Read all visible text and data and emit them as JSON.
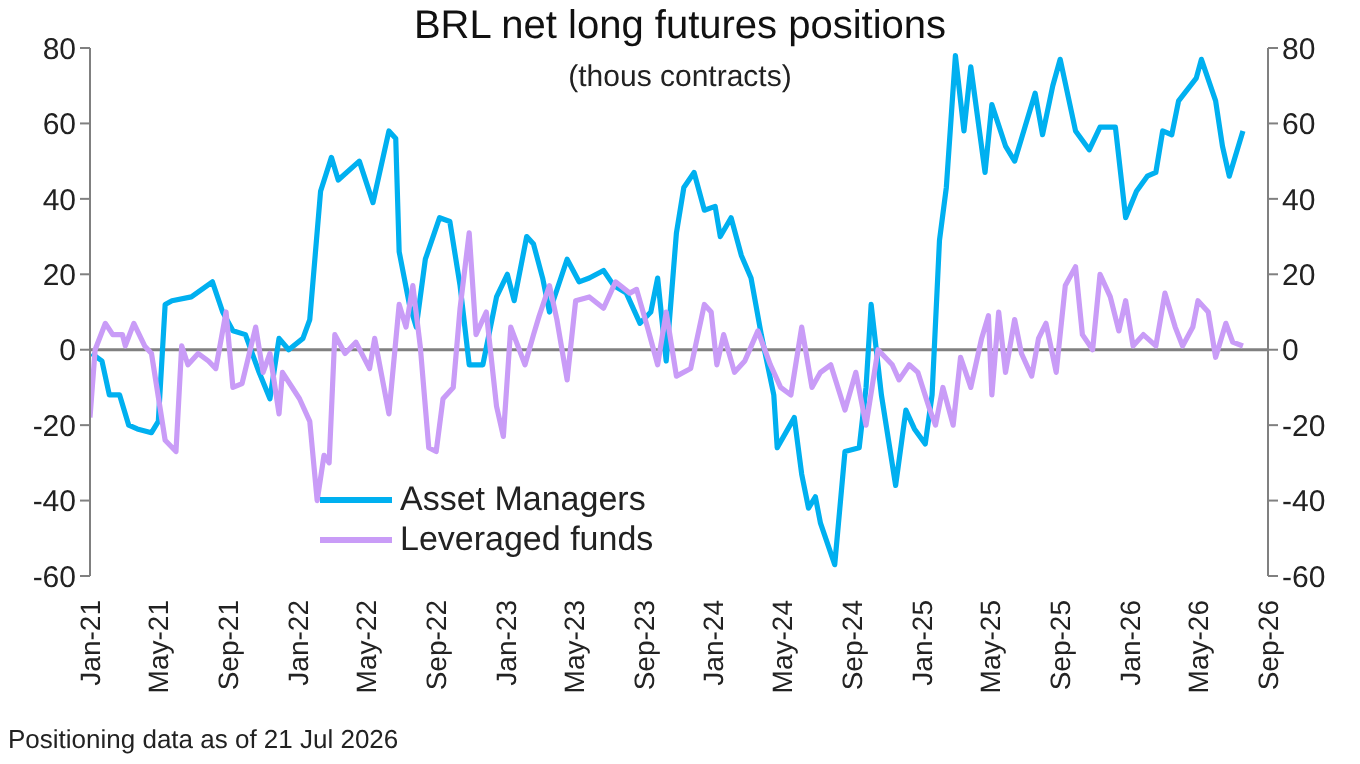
{
  "chart_data": {
    "type": "line",
    "title": "BRL net long futures positions",
    "subtitle": "(thous contracts)",
    "annotations": [
      "Positioning data as of 21 Jul 2026"
    ],
    "xlim": [
      "2021-01-01",
      "2026-09-01"
    ],
    "xticks": [
      {
        "value": "2021-01-01",
        "label": "Jan-21"
      },
      {
        "value": "2021-05-01",
        "label": "May-21"
      },
      {
        "value": "2021-09-01",
        "label": "Sep-21"
      },
      {
        "value": "2022-01-01",
        "label": "Jan-22"
      },
      {
        "value": "2022-05-01",
        "label": "May-22"
      },
      {
        "value": "2022-09-01",
        "label": "Sep-22"
      },
      {
        "value": "2023-01-01",
        "label": "Jan-23"
      },
      {
        "value": "2023-05-01",
        "label": "May-23"
      },
      {
        "value": "2023-09-01",
        "label": "Sep-23"
      },
      {
        "value": "2024-01-01",
        "label": "Jan-24"
      },
      {
        "value": "2024-05-01",
        "label": "May-24"
      },
      {
        "value": "2024-09-01",
        "label": "Sep-24"
      },
      {
        "value": "2025-01-01",
        "label": "Jan-25"
      },
      {
        "value": "2025-05-01",
        "label": "May-25"
      },
      {
        "value": "2025-09-01",
        "label": "Sep-25"
      },
      {
        "value": "2026-01-01",
        "label": "Jan-26"
      },
      {
        "value": "2026-05-01",
        "label": "May-26"
      },
      {
        "value": "2026-09-01",
        "label": "Sep-26"
      }
    ],
    "ylim": [
      -60,
      80
    ],
    "yticks": [
      -60,
      -40,
      -20,
      0,
      20,
      40,
      60,
      80
    ],
    "y2lim": [
      -60,
      80
    ],
    "y2ticks": [
      -60,
      -40,
      -20,
      0,
      20,
      40,
      60,
      80
    ],
    "ref_lines": [
      {
        "axis": "y",
        "value": 0,
        "color": "#808080"
      }
    ],
    "legend": "bottom left",
    "marker": "none",
    "line_style": "solid",
    "series": [
      {
        "name": "Asset Managers",
        "color": "#00b0f0",
        "x": [
          "2021-01-04",
          "2021-01-22",
          "2021-02-04",
          "2021-02-22",
          "2021-03-10",
          "2021-03-25",
          "2021-04-19",
          "2021-05-01",
          "2021-05-13",
          "2021-05-25",
          "2021-06-28",
          "2021-08-04",
          "2021-08-22",
          "2021-09-09",
          "2021-10-01",
          "2021-10-25",
          "2021-11-13",
          "2021-11-29",
          "2021-12-16",
          "2022-01-10",
          "2022-01-22",
          "2022-02-10",
          "2022-03-01",
          "2022-03-13",
          "2022-04-19",
          "2022-05-13",
          "2022-06-10",
          "2022-06-22",
          "2022-06-28",
          "2022-07-16",
          "2022-07-28",
          "2022-08-13",
          "2022-09-07",
          "2022-09-25",
          "2022-10-13",
          "2022-10-29",
          "2022-11-22",
          "2022-12-16",
          "2023-01-04",
          "2023-01-16",
          "2023-02-07",
          "2023-02-19",
          "2023-03-07",
          "2023-03-19",
          "2023-04-19",
          "2023-05-10",
          "2023-05-28",
          "2023-06-22",
          "2023-07-10",
          "2023-08-01",
          "2023-08-25",
          "2023-09-13",
          "2023-09-25",
          "2023-10-10",
          "2023-10-28",
          "2023-11-10",
          "2023-11-28",
          "2023-12-16",
          "2024-01-04",
          "2024-01-13",
          "2024-02-01",
          "2024-02-19",
          "2024-03-07",
          "2024-03-25",
          "2024-04-16",
          "2024-04-22",
          "2024-05-22",
          "2024-06-04",
          "2024-06-16",
          "2024-06-28",
          "2024-07-07",
          "2024-08-01",
          "2024-08-19",
          "2024-09-13",
          "2024-09-25",
          "2024-10-04",
          "2024-10-22",
          "2024-11-16",
          "2024-12-04",
          "2024-12-19",
          "2025-01-07",
          "2025-01-19",
          "2025-02-01",
          "2025-02-13",
          "2025-03-01",
          "2025-03-16",
          "2025-03-28",
          "2025-04-22",
          "2025-05-04",
          "2025-05-28",
          "2025-06-13",
          "2025-07-01",
          "2025-07-19",
          "2025-08-01",
          "2025-08-19",
          "2025-09-01",
          "2025-09-28",
          "2025-10-22",
          "2025-11-10",
          "2025-12-07",
          "2025-12-25",
          "2026-01-13",
          "2026-02-01",
          "2026-02-16",
          "2026-02-28",
          "2026-03-16",
          "2026-03-28",
          "2026-04-28",
          "2026-05-07",
          "2026-06-01",
          "2026-06-13",
          "2026-06-25",
          "2026-07-19"
        ],
        "values": [
          -1,
          -3,
          -12,
          -12,
          -20,
          -21,
          -22,
          -19,
          12,
          13,
          14,
          18,
          10,
          5,
          4,
          -6,
          -13,
          3,
          0,
          3,
          8,
          42,
          51,
          45,
          50,
          39,
          58,
          56,
          26,
          12,
          6,
          24,
          35,
          34,
          17,
          -4,
          -4,
          14,
          20,
          13,
          30,
          28,
          19,
          10,
          24,
          18,
          19,
          21,
          17,
          15,
          7,
          10,
          19,
          -3,
          31,
          43,
          47,
          37,
          38,
          30,
          35,
          25,
          19,
          4,
          -12,
          -26,
          -18,
          -33,
          -42,
          -39,
          -46,
          -57,
          -27,
          -26,
          -10,
          12,
          -12,
          -36,
          -16,
          -21,
          -25,
          -12,
          29,
          43,
          78,
          58,
          75,
          47,
          65,
          54,
          50,
          59,
          68,
          57,
          70,
          77,
          58,
          53,
          59,
          59,
          35,
          42,
          46,
          47,
          58,
          57,
          66,
          72,
          77,
          66,
          54,
          46,
          58
        ]
      },
      {
        "name": "Leveraged funds",
        "color": "#c99cf7",
        "x": [
          "2021-01-01",
          "2021-01-10",
          "2021-01-28",
          "2021-02-10",
          "2021-02-27",
          "2021-03-04",
          "2021-03-19",
          "2021-04-07",
          "2021-04-19",
          "2021-05-13",
          "2021-06-01",
          "2021-06-11",
          "2021-06-22",
          "2021-07-10",
          "2021-07-28",
          "2021-08-10",
          "2021-08-28",
          "2021-09-09",
          "2021-09-25",
          "2021-10-19",
          "2021-11-01",
          "2021-11-13",
          "2021-11-29",
          "2021-12-05",
          "2022-01-04",
          "2022-01-22",
          "2022-02-04",
          "2022-02-16",
          "2022-02-25",
          "2022-03-07",
          "2022-03-25",
          "2022-04-13",
          "2022-05-07",
          "2022-05-16",
          "2022-06-10",
          "2022-06-28",
          "2022-07-10",
          "2022-07-22",
          "2022-08-04",
          "2022-08-19",
          "2022-09-01",
          "2022-09-13",
          "2022-10-01",
          "2022-10-13",
          "2022-10-29",
          "2022-11-10",
          "2022-11-28",
          "2022-12-16",
          "2022-12-28",
          "2023-01-10",
          "2023-02-04",
          "2023-02-19",
          "2023-03-01",
          "2023-03-19",
          "2023-04-01",
          "2023-04-19",
          "2023-05-04",
          "2023-05-28",
          "2023-06-22",
          "2023-07-13",
          "2023-08-07",
          "2023-08-19",
          "2023-09-07",
          "2023-09-25",
          "2023-10-10",
          "2023-10-28",
          "2023-11-22",
          "2023-12-16",
          "2023-12-28",
          "2024-01-07",
          "2024-01-19",
          "2024-02-07",
          "2024-02-25",
          "2024-03-19",
          "2024-04-10",
          "2024-04-28",
          "2024-05-16",
          "2024-06-04",
          "2024-06-22",
          "2024-07-07",
          "2024-07-25",
          "2024-08-19",
          "2024-09-07",
          "2024-09-25",
          "2024-10-16",
          "2024-11-10",
          "2024-11-22",
          "2024-12-10",
          "2024-12-25",
          "2025-01-13",
          "2025-01-25",
          "2025-02-07",
          "2025-02-25",
          "2025-03-10",
          "2025-03-28",
          "2025-04-16",
          "2025-04-28",
          "2025-05-04",
          "2025-05-16",
          "2025-05-28",
          "2025-06-13",
          "2025-06-25",
          "2025-07-13",
          "2025-07-25",
          "2025-08-07",
          "2025-08-25",
          "2025-09-10",
          "2025-09-28",
          "2025-10-10",
          "2025-10-28",
          "2025-11-10",
          "2025-11-28",
          "2025-12-13",
          "2025-12-25",
          "2026-01-07",
          "2026-01-25",
          "2026-02-16",
          "2026-03-04",
          "2026-03-22",
          "2026-04-04",
          "2026-04-22",
          "2026-05-01",
          "2026-05-19",
          "2026-06-01",
          "2026-06-19",
          "2026-07-01",
          "2026-07-19"
        ],
        "values": [
          -18,
          0,
          7,
          4,
          4,
          1,
          7,
          1,
          -1,
          -24,
          -27,
          1,
          -4,
          -1,
          -3,
          -5,
          10,
          -10,
          -9,
          6,
          -6,
          -1,
          -17,
          -6,
          -13,
          -19,
          -40,
          -28,
          -30,
          4,
          -1,
          2,
          -5,
          3,
          -17,
          12,
          6,
          17,
          1,
          -26,
          -27,
          -13,
          -10,
          11,
          31,
          4,
          10,
          -15,
          -23,
          6,
          -4,
          4,
          9,
          17,
          8,
          -8,
          13,
          14,
          11,
          18,
          15,
          16,
          6,
          -4,
          10,
          -7,
          -5,
          12,
          10,
          -4,
          4,
          -6,
          -3,
          5,
          -4,
          -10,
          -12,
          6,
          -10,
          -6,
          -4,
          -16,
          -6,
          -20,
          0,
          -4,
          -8,
          -4,
          -6,
          -15,
          -20,
          -10,
          -20,
          -2,
          -10,
          3,
          9,
          -12,
          10,
          -6,
          8,
          -1,
          -7,
          3,
          7,
          -6,
          17,
          22,
          4,
          0,
          20,
          14,
          5,
          13,
          1,
          4,
          1,
          15,
          6,
          1,
          6,
          13,
          10,
          -2,
          7,
          2,
          1
        ]
      }
    ]
  }
}
